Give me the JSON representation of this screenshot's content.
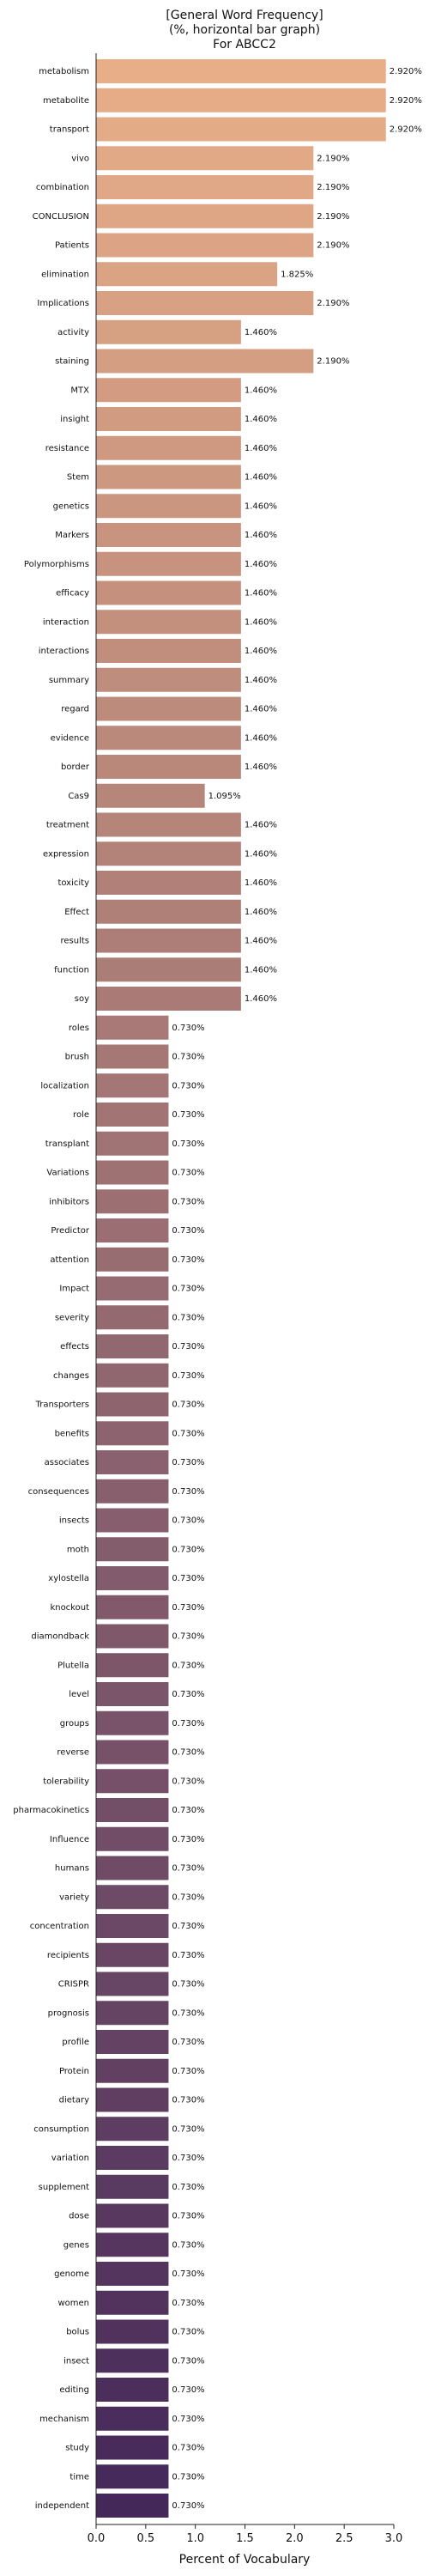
{
  "chart_data": {
    "type": "bar",
    "orientation": "horizontal",
    "title": [
      "[General Word Frequency]",
      "(%, horizontal bar graph)",
      "For ABCC2"
    ],
    "xlabel": "Percent of Vocabulary",
    "xlim": [
      0,
      3.0
    ],
    "xticks": [
      0.0,
      0.5,
      1.0,
      1.5,
      2.0,
      2.5,
      3.0
    ],
    "xtick_labels": [
      "0.0",
      "0.5",
      "1.0",
      "1.5",
      "2.0",
      "2.5",
      "3.0"
    ],
    "grid": false,
    "value_label_suffix": "%",
    "color_start": "#e8ae88",
    "color_end": "#44285a",
    "categories": [
      "metabolism",
      "metabolite",
      "transport",
      "vivo",
      "combination",
      "CONCLUSION",
      "Patients",
      "elimination",
      "Implications",
      "activity",
      "staining",
      "MTX",
      "insight",
      "resistance",
      "Stem",
      "genetics",
      "Markers",
      "Polymorphisms",
      "efficacy",
      "interaction",
      "interactions",
      "summary",
      "regard",
      "evidence",
      "border",
      "Cas9",
      "treatment",
      "expression",
      "toxicity",
      "Effect",
      "results",
      "function",
      "soy",
      "roles",
      "brush",
      "localization",
      "role",
      "transplant",
      "Variations",
      "inhibitors",
      "Predictor",
      "attention",
      "Impact",
      "severity",
      "effects",
      "changes",
      "Transporters",
      "benefits",
      "associates",
      "consequences",
      "insects",
      "moth",
      "xylostella",
      "knockout",
      "diamondback",
      "Plutella",
      "level",
      "groups",
      "reverse",
      "tolerability",
      "pharmacokinetics",
      "Influence",
      "humans",
      "variety",
      "concentration",
      "recipients",
      "CRISPR",
      "prognosis",
      "profile",
      "Protein",
      "dietary",
      "consumption",
      "variation",
      "supplement",
      "dose",
      "genes",
      "genome",
      "women",
      "bolus",
      "insect",
      "editing",
      "mechanism",
      "study",
      "time",
      "independent"
    ],
    "values": [
      2.92,
      2.92,
      2.92,
      2.19,
      2.19,
      2.19,
      2.19,
      1.825,
      2.19,
      1.46,
      2.19,
      1.46,
      1.46,
      1.46,
      1.46,
      1.46,
      1.46,
      1.46,
      1.46,
      1.46,
      1.46,
      1.46,
      1.46,
      1.46,
      1.46,
      1.095,
      1.46,
      1.46,
      1.46,
      1.46,
      1.46,
      1.46,
      1.46,
      0.73,
      0.73,
      0.73,
      0.73,
      0.73,
      0.73,
      0.73,
      0.73,
      0.73,
      0.73,
      0.73,
      0.73,
      0.73,
      0.73,
      0.73,
      0.73,
      0.73,
      0.73,
      0.73,
      0.73,
      0.73,
      0.73,
      0.73,
      0.73,
      0.73,
      0.73,
      0.73,
      0.73,
      0.73,
      0.73,
      0.73,
      0.73,
      0.73,
      0.73,
      0.73,
      0.73,
      0.73,
      0.73,
      0.73,
      0.73,
      0.73,
      0.73,
      0.73,
      0.73,
      0.73,
      0.73,
      0.73,
      0.73,
      0.73,
      0.73,
      0.73,
      0.73
    ]
  }
}
